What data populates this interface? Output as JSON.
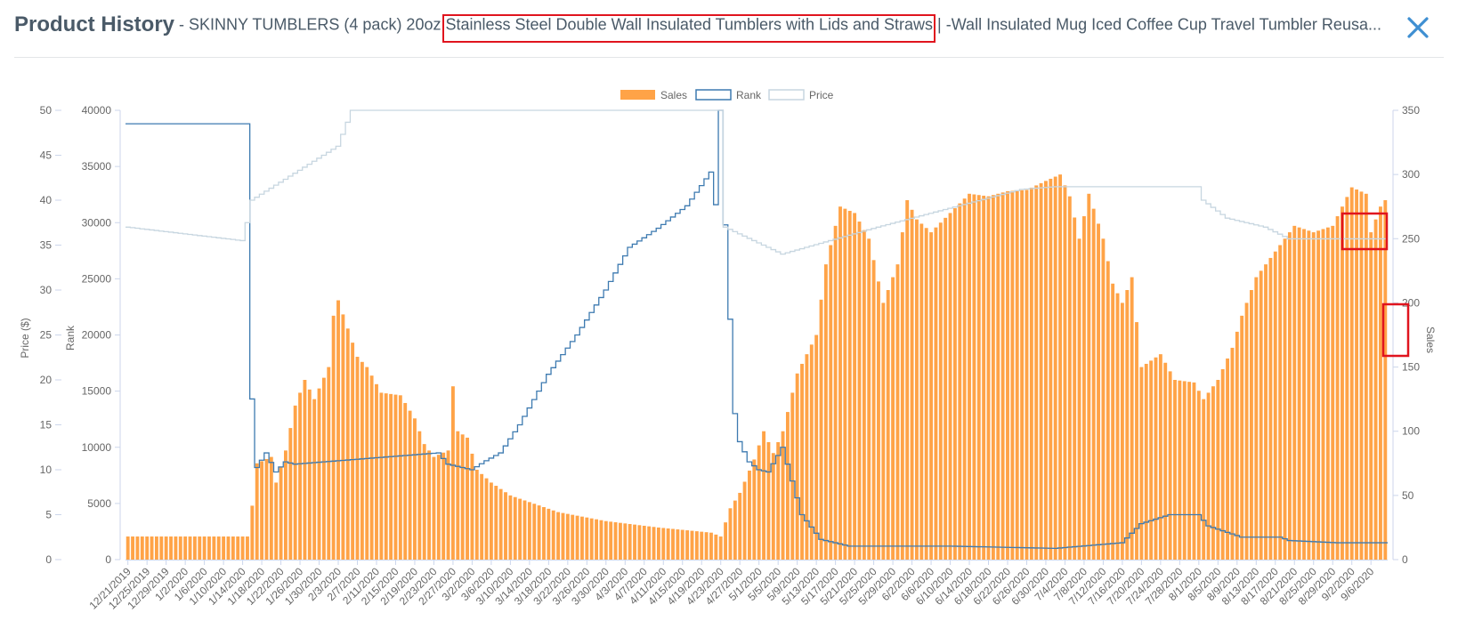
{
  "header": {
    "title": "Product History",
    "subtitle": " - SKINNY TUMBLERS (4 pack) 20oz Stainless Steel Double Wall Insulated Tumblers with Lids and Straws | -Wall Insulated Mug Iced Coffee Cup Travel Tumbler Reusa...",
    "close_icon": "close-icon"
  },
  "colors": {
    "sales": "#ffa347",
    "rank": "#3d7ab0",
    "price": "#c7d6e0",
    "highlight": "#e0141e"
  },
  "chart_data": {
    "type": "bar",
    "legend": {
      "position": "top",
      "entries": [
        "Sales",
        "Rank",
        "Price"
      ]
    },
    "x_start": "2019-12-21",
    "x_end": "2020-09-09",
    "x_ticks": [
      "12/21/2019",
      "12/25/2019",
      "12/29/2019",
      "1/2/2020",
      "1/6/2020",
      "1/10/2020",
      "1/14/2020",
      "1/18/2020",
      "1/22/2020",
      "1/26/2020",
      "1/30/2020",
      "2/3/2020",
      "2/7/2020",
      "2/11/2020",
      "2/15/2020",
      "2/19/2020",
      "2/23/2020",
      "2/27/2020",
      "3/2/2020",
      "3/6/2020",
      "3/10/2020",
      "3/14/2020",
      "3/18/2020",
      "3/22/2020",
      "3/26/2020",
      "3/30/2020",
      "4/3/2020",
      "4/7/2020",
      "4/11/2020",
      "4/15/2020",
      "4/19/2020",
      "4/23/2020",
      "4/27/2020",
      "5/1/2020",
      "5/5/2020",
      "5/9/2020",
      "5/13/2020",
      "5/17/2020",
      "5/21/2020",
      "5/25/2020",
      "5/29/2020",
      "6/2/2020",
      "6/6/2020",
      "6/10/2020",
      "6/14/2020",
      "6/18/2020",
      "6/22/2020",
      "6/26/2020",
      "6/30/2020",
      "7/4/2020",
      "7/8/2020",
      "7/12/2020",
      "7/16/2020",
      "7/20/2020",
      "7/24/2020",
      "7/28/2020",
      "8/1/2020",
      "8/5/2020",
      "8/9/2020",
      "8/13/2020",
      "8/17/2020",
      "8/21/2020",
      "8/25/2020",
      "8/29/2020",
      "9/2/2020",
      "9/6/2020"
    ],
    "axes": {
      "price": {
        "label": "Price ($)",
        "range": [
          0,
          50
        ],
        "ticks": [
          "0",
          "5",
          "10",
          "15",
          "20",
          "25",
          "30",
          "35",
          "40",
          "45",
          "50"
        ]
      },
      "rank": {
        "label": "Rank",
        "range": [
          0,
          40000
        ],
        "ticks": [
          "0",
          "5000",
          "10000",
          "15000",
          "20000",
          "25000",
          "30000",
          "35000",
          "40000"
        ]
      },
      "sales": {
        "label": "Sales",
        "range": [
          0,
          350
        ],
        "ticks": [
          "0",
          "50",
          "100",
          "150",
          "200",
          "250",
          "300",
          "350"
        ]
      }
    },
    "series": [
      {
        "name": "Sales",
        "type": "bar",
        "axis": "sales",
        "anchors": [
          [
            "2019-12-21",
            18
          ],
          [
            "2020-01-14",
            18
          ],
          [
            "2020-01-15",
            18
          ],
          [
            "2020-01-16",
            42
          ],
          [
            "2020-01-17",
            75
          ],
          [
            "2020-01-20",
            80
          ],
          [
            "2020-01-21",
            60
          ],
          [
            "2020-01-23",
            85
          ],
          [
            "2020-01-25",
            120
          ],
          [
            "2020-01-27",
            140
          ],
          [
            "2020-01-29",
            125
          ],
          [
            "2020-02-01",
            150
          ],
          [
            "2020-02-02",
            190
          ],
          [
            "2020-02-03",
            202
          ],
          [
            "2020-02-05",
            180
          ],
          [
            "2020-02-07",
            158
          ],
          [
            "2020-02-09",
            150
          ],
          [
            "2020-02-12",
            130
          ],
          [
            "2020-02-16",
            128
          ],
          [
            "2020-02-19",
            110
          ],
          [
            "2020-02-21",
            90
          ],
          [
            "2020-02-23",
            80
          ],
          [
            "2020-02-26",
            85
          ],
          [
            "2020-02-27",
            135
          ],
          [
            "2020-02-28",
            100
          ],
          [
            "2020-03-01",
            95
          ],
          [
            "2020-03-03",
            70
          ],
          [
            "2020-03-06",
            60
          ],
          [
            "2020-03-10",
            50
          ],
          [
            "2020-03-20",
            37
          ],
          [
            "2020-03-30",
            30
          ],
          [
            "2020-04-10",
            25
          ],
          [
            "2020-04-21",
            21
          ],
          [
            "2020-04-23",
            18
          ],
          [
            "2020-04-25",
            40
          ],
          [
            "2020-04-27",
            52
          ],
          [
            "2020-04-30",
            78
          ],
          [
            "2020-05-02",
            100
          ],
          [
            "2020-05-04",
            83
          ],
          [
            "2020-05-06",
            100
          ],
          [
            "2020-05-09",
            145
          ],
          [
            "2020-05-13",
            175
          ],
          [
            "2020-05-15",
            230
          ],
          [
            "2020-05-18",
            275
          ],
          [
            "2020-05-21",
            270
          ],
          [
            "2020-05-24",
            250
          ],
          [
            "2020-05-27",
            200
          ],
          [
            "2020-05-30",
            230
          ],
          [
            "2020-06-01",
            280
          ],
          [
            "2020-06-03",
            265
          ],
          [
            "2020-06-06",
            255
          ],
          [
            "2020-06-10",
            270
          ],
          [
            "2020-06-14",
            285
          ],
          [
            "2020-06-18",
            283
          ],
          [
            "2020-06-22",
            287
          ],
          [
            "2020-06-26",
            288
          ],
          [
            "2020-06-30",
            295
          ],
          [
            "2020-07-03",
            300
          ],
          [
            "2020-07-05",
            283
          ],
          [
            "2020-07-07",
            250
          ],
          [
            "2020-07-09",
            285
          ],
          [
            "2020-07-12",
            250
          ],
          [
            "2020-07-14",
            215
          ],
          [
            "2020-07-16",
            200
          ],
          [
            "2020-07-18",
            220
          ],
          [
            "2020-07-20",
            150
          ],
          [
            "2020-07-24",
            160
          ],
          [
            "2020-07-27",
            140
          ],
          [
            "2020-07-31",
            138
          ],
          [
            "2020-08-02",
            125
          ],
          [
            "2020-08-05",
            140
          ],
          [
            "2020-08-08",
            165
          ],
          [
            "2020-08-10",
            190
          ],
          [
            "2020-08-13",
            220
          ],
          [
            "2020-08-17",
            240
          ],
          [
            "2020-08-21",
            260
          ],
          [
            "2020-08-25",
            255
          ],
          [
            "2020-08-29",
            260
          ],
          [
            "2020-09-02",
            290
          ],
          [
            "2020-09-05",
            285
          ],
          [
            "2020-09-06",
            255
          ],
          [
            "2020-09-08",
            275
          ],
          [
            "2020-09-09",
            280
          ]
        ]
      },
      {
        "name": "Rank",
        "type": "step",
        "axis": "rank",
        "anchors": [
          [
            "2019-12-21",
            38800
          ],
          [
            "2020-01-15",
            38800
          ],
          [
            "2020-01-16",
            14300
          ],
          [
            "2020-01-17",
            8200
          ],
          [
            "2020-01-19",
            9500
          ],
          [
            "2020-01-21",
            7800
          ],
          [
            "2020-01-23",
            8700
          ],
          [
            "2020-01-25",
            8500
          ],
          [
            "2020-02-24",
            9500
          ],
          [
            "2020-02-26",
            8500
          ],
          [
            "2020-03-02",
            8000
          ],
          [
            "2020-03-05",
            8800
          ],
          [
            "2020-03-08",
            9500
          ],
          [
            "2020-03-12",
            12000
          ],
          [
            "2020-03-18",
            16500
          ],
          [
            "2020-03-24",
            20000
          ],
          [
            "2020-03-30",
            24000
          ],
          [
            "2020-04-04",
            27800
          ],
          [
            "2020-04-10",
            29500
          ],
          [
            "2020-04-16",
            31500
          ],
          [
            "2020-04-21",
            34500
          ],
          [
            "2020-04-22",
            31600
          ],
          [
            "2020-04-23",
            40000
          ],
          [
            "2020-04-24",
            29800
          ],
          [
            "2020-04-26",
            13000
          ],
          [
            "2020-04-27",
            10500
          ],
          [
            "2020-04-29",
            8700
          ],
          [
            "2020-05-01",
            8000
          ],
          [
            "2020-05-03",
            7800
          ],
          [
            "2020-05-06",
            10000
          ],
          [
            "2020-05-10",
            4000
          ],
          [
            "2020-05-14",
            1800
          ],
          [
            "2020-05-20",
            1200
          ],
          [
            "2020-06-10",
            1200
          ],
          [
            "2020-07-02",
            1000
          ],
          [
            "2020-07-16",
            1500
          ],
          [
            "2020-07-20",
            3200
          ],
          [
            "2020-07-26",
            4000
          ],
          [
            "2020-08-01",
            4000
          ],
          [
            "2020-08-03",
            3000
          ],
          [
            "2020-08-10",
            2000
          ],
          [
            "2020-08-18",
            2000
          ],
          [
            "2020-08-20",
            1700
          ],
          [
            "2020-08-30",
            1500
          ],
          [
            "2020-09-09",
            1500
          ]
        ]
      },
      {
        "name": "Price",
        "type": "step",
        "axis": "price",
        "anchors": [
          [
            "2019-12-21",
            37
          ],
          [
            "2020-01-14",
            35.5
          ],
          [
            "2020-01-15",
            37.5
          ],
          [
            "2020-01-16",
            40
          ],
          [
            "2020-02-03",
            46
          ],
          [
            "2020-02-06",
            50
          ],
          [
            "2020-04-23",
            50
          ],
          [
            "2020-04-24",
            37
          ],
          [
            "2020-05-06",
            34
          ],
          [
            "2020-05-26",
            37
          ],
          [
            "2020-06-25",
            41.2
          ],
          [
            "2020-07-02",
            41.5
          ],
          [
            "2020-08-01",
            41.5
          ],
          [
            "2020-08-02",
            40
          ],
          [
            "2020-08-07",
            38
          ],
          [
            "2020-08-15",
            37
          ],
          [
            "2020-08-20",
            35.7
          ],
          [
            "2020-09-09",
            35.7
          ]
        ]
      }
    ]
  }
}
